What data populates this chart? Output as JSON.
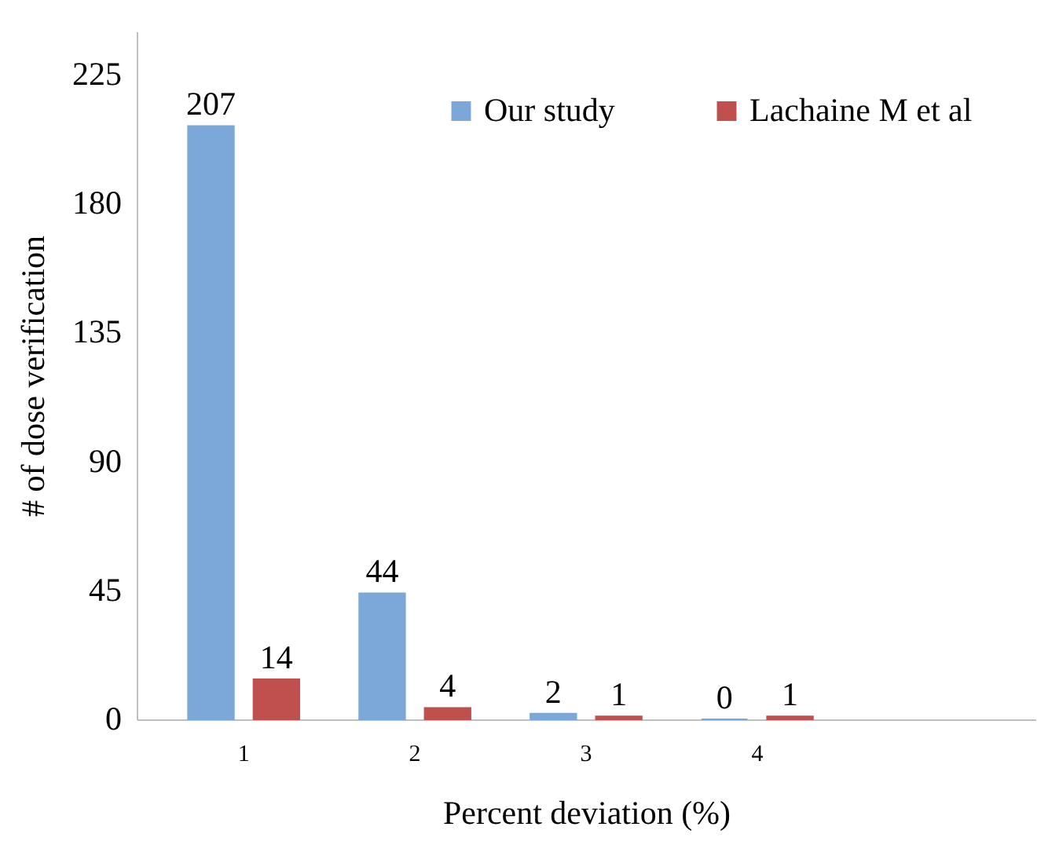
{
  "chart_data": {
    "type": "bar",
    "xlabel": "Percent deviation (%)",
    "ylabel": "# of dose verification",
    "categories": [
      "1",
      "2",
      "3",
      "4",
      null
    ],
    "series": [
      {
        "name": "Our study",
        "color": "#7ba7d9",
        "values": [
          207,
          44,
          2,
          0,
          null
        ]
      },
      {
        "name": "Lachaine M et al",
        "color": "#c0504d",
        "values": [
          14,
          4,
          1,
          1,
          null
        ]
      }
    ],
    "ylim": [
      0,
      240
    ],
    "yticks": [
      0,
      45,
      90,
      135,
      180,
      225
    ],
    "grid": false,
    "legend": "top right",
    "data_labels": true
  }
}
